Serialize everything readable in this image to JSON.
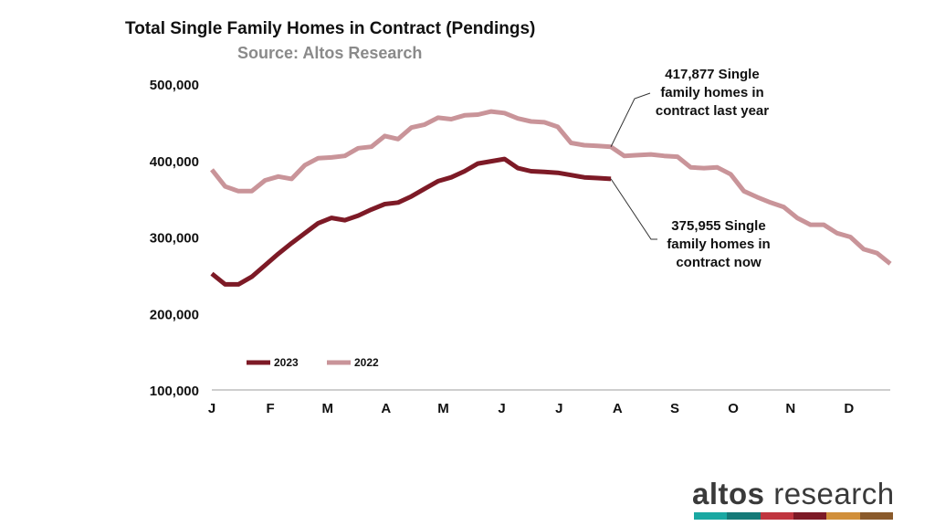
{
  "chart_data": {
    "type": "line",
    "title": "Total Single Family Homes in Contract (Pendings)",
    "subtitle": "Source: Altos Research",
    "x_tick_labels": [
      "J",
      "F",
      "M",
      "A",
      "M",
      "J",
      "J",
      "A",
      "S",
      "O",
      "N",
      "D"
    ],
    "y_tick_labels": [
      "500,000",
      "400,000",
      "300,000",
      "200,000",
      "100,000"
    ],
    "ylim": [
      100000,
      500000
    ],
    "x_range_weeks": [
      1,
      52
    ],
    "series": [
      {
        "name": "2023",
        "color": "#7d1a26",
        "values": [
          252000,
          238000,
          238000,
          248000,
          263000,
          278000,
          292000,
          305000,
          318000,
          325000,
          322000,
          328000,
          336000,
          343000,
          345000,
          353000,
          363000,
          373000,
          378000,
          386000,
          396000,
          399000,
          402000,
          390000,
          386000,
          385000,
          384000,
          381000,
          378000,
          377000,
          375955
        ]
      },
      {
        "name": "2022",
        "color": "#c99499",
        "values": [
          388000,
          366000,
          360000,
          360000,
          374000,
          379000,
          376000,
          394000,
          403000,
          404000,
          406000,
          416000,
          418000,
          432000,
          428000,
          443000,
          447000,
          456000,
          454000,
          459000,
          460000,
          464000,
          462000,
          455000,
          451000,
          450000,
          444000,
          423000,
          420000,
          419000,
          417877,
          406000,
          407000,
          408000,
          406000,
          405000,
          391000,
          390000,
          391000,
          382000,
          360000,
          352000,
          345000,
          339000,
          325000,
          316000,
          316000,
          305000,
          300000,
          284000,
          279000,
          265000
        ]
      }
    ],
    "annotations": [
      {
        "lines": [
          "417,877  Single",
          "family homes in",
          "contract last year"
        ]
      },
      {
        "lines": [
          "375,955 Single",
          "family homes in",
          "contract now"
        ]
      }
    ]
  },
  "logo": {
    "bold": "altos",
    "light": " research",
    "bar_colors": [
      "#1aa8a2",
      "#157a78",
      "#c0353f",
      "#7d1a26",
      "#d18f3a",
      "#8a5a2b"
    ]
  }
}
